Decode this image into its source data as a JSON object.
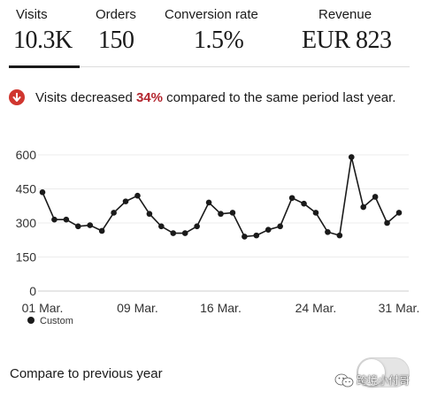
{
  "metrics": [
    {
      "label": "Visits",
      "value": "10.3K"
    },
    {
      "label": "Orders",
      "value": "150"
    },
    {
      "label": "Conversion rate",
      "value": "1.5%"
    },
    {
      "label": "Revenue",
      "value": "EUR 823"
    }
  ],
  "notice": {
    "icon": "arrow-down-circle-icon",
    "prefix": "Visits decreased ",
    "percent": "34%",
    "suffix": " compared to the same period last year.",
    "accent_color": "#d0362f"
  },
  "chart_data": {
    "type": "line",
    "title": "",
    "xlabel": "",
    "ylabel": "",
    "x_days": [
      1,
      2,
      3,
      4,
      5,
      6,
      7,
      8,
      9,
      10,
      11,
      12,
      13,
      14,
      15,
      16,
      17,
      18,
      19,
      20,
      21,
      22,
      23,
      24,
      25,
      26,
      27,
      28,
      29,
      30,
      31
    ],
    "xticks": [
      "01 Mar.",
      "09 Mar.",
      "16 Mar.",
      "24 Mar.",
      "31 Mar."
    ],
    "xtick_days": [
      1,
      9,
      16,
      24,
      31
    ],
    "yticks": [
      "600",
      "450",
      "300",
      "150",
      "0"
    ],
    "ytick_values": [
      600,
      450,
      300,
      150,
      0
    ],
    "ylim": [
      0,
      600
    ],
    "grid": true,
    "legend_position": "bottom-left",
    "series": [
      {
        "name": "Custom",
        "color": "#1a1a1a",
        "values": [
          435,
          315,
          315,
          285,
          290,
          265,
          345,
          395,
          420,
          340,
          285,
          255,
          255,
          285,
          390,
          340,
          345,
          240,
          245,
          270,
          285,
          410,
          385,
          345,
          260,
          245,
          590,
          370,
          415,
          300,
          345
        ]
      }
    ]
  },
  "compare": {
    "label": "Compare to previous year",
    "enabled": false
  },
  "watermark": {
    "text": "跨境小付哥"
  }
}
